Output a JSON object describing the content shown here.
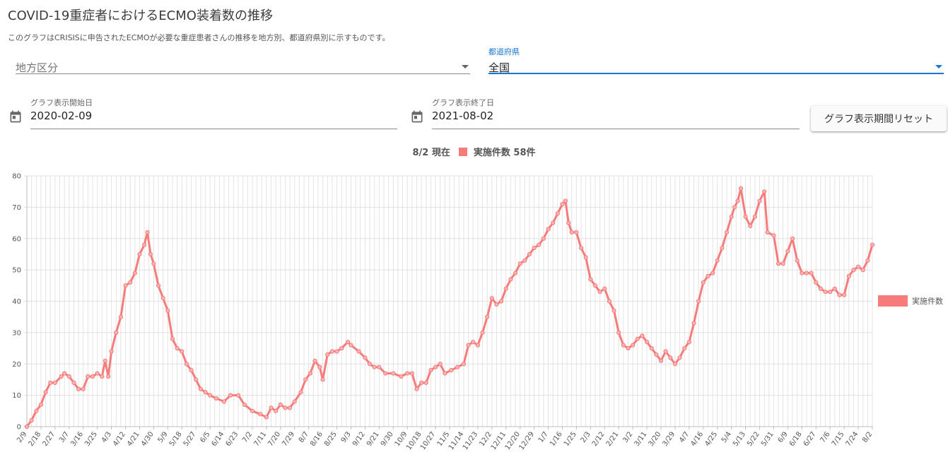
{
  "page": {
    "title": "COVID-19重症者におけるECMO装着数の推移",
    "description": "このグラフはCRISISに申告されたECMOが必要な重症患者さんの推移を地方別、都道府県別に示すものです。"
  },
  "filters": {
    "region": {
      "placeholder": "地方区分",
      "value": ""
    },
    "prefecture": {
      "label": "都道府県",
      "value": "全国"
    }
  },
  "date_range": {
    "start": {
      "label": "グラフ表示開始日",
      "value": "2020-02-09"
    },
    "end": {
      "label": "グラフ表示終了日",
      "value": "2021-08-02"
    },
    "reset_label": "グラフ表示期間リセット"
  },
  "summary": {
    "date_text": "8/2 現在",
    "metric_text": "実施件数 58件"
  },
  "colors": {
    "series": "#f77b7b",
    "accent": "#1976d2"
  },
  "icons": {
    "date_start": "calendar-icon",
    "date_end": "calendar-icon",
    "dropdown": "dropdown-arrow-icon"
  },
  "chart_data": {
    "type": "line",
    "x_start": "2020-02-09",
    "x_end": "2021-08-02",
    "x_tick_interval_days": 9,
    "x_tick_labels": [
      "2/9",
      "2/18",
      "2/27",
      "3/7",
      "3/16",
      "3/25",
      "4/3",
      "4/12",
      "4/21",
      "4/30",
      "5/9",
      "5/18",
      "5/27",
      "6/5",
      "6/14",
      "6/23",
      "7/2",
      "7/11",
      "7/20",
      "7/29",
      "8/7",
      "8/16",
      "8/25",
      "9/3",
      "9/12",
      "9/21",
      "9/30",
      "10/9",
      "10/18",
      "10/27",
      "11/5",
      "11/14",
      "11/23",
      "12/2",
      "12/11",
      "12/20",
      "12/29",
      "1/7",
      "1/16",
      "1/25",
      "2/3",
      "2/12",
      "2/21",
      "3/2",
      "3/11",
      "3/20",
      "3/29",
      "4/7",
      "4/16",
      "4/25",
      "5/4",
      "5/13",
      "5/22",
      "5/31",
      "6/9",
      "6/18",
      "6/27",
      "7/6",
      "7/15",
      "7/24",
      "8/2"
    ],
    "y_range": [
      0,
      80
    ],
    "y_ticks": [
      0,
      10,
      20,
      30,
      40,
      50,
      60,
      70,
      80
    ],
    "grid": true,
    "legend_position": "right",
    "series": [
      {
        "name": "実施件数",
        "color": "#f77b7b",
        "points": [
          [
            "2020-02-09",
            0
          ],
          [
            "2020-02-12",
            2
          ],
          [
            "2020-02-15",
            5
          ],
          [
            "2020-02-18",
            7
          ],
          [
            "2020-02-21",
            11
          ],
          [
            "2020-02-24",
            14
          ],
          [
            "2020-02-27",
            14
          ],
          [
            "2020-03-02",
            16
          ],
          [
            "2020-03-04",
            17
          ],
          [
            "2020-03-07",
            16
          ],
          [
            "2020-03-10",
            14
          ],
          [
            "2020-03-13",
            12
          ],
          [
            "2020-03-16",
            12
          ],
          [
            "2020-03-19",
            16
          ],
          [
            "2020-03-22",
            16
          ],
          [
            "2020-03-25",
            17
          ],
          [
            "2020-03-28",
            16
          ],
          [
            "2020-03-30",
            21
          ],
          [
            "2020-04-01",
            16
          ],
          [
            "2020-04-03",
            24
          ],
          [
            "2020-04-06",
            30
          ],
          [
            "2020-04-09",
            35
          ],
          [
            "2020-04-12",
            45
          ],
          [
            "2020-04-15",
            46
          ],
          [
            "2020-04-18",
            49
          ],
          [
            "2020-04-21",
            55
          ],
          [
            "2020-04-24",
            58
          ],
          [
            "2020-04-26",
            62
          ],
          [
            "2020-04-28",
            55
          ],
          [
            "2020-04-30",
            52
          ],
          [
            "2020-05-03",
            45
          ],
          [
            "2020-05-06",
            41
          ],
          [
            "2020-05-09",
            37
          ],
          [
            "2020-05-12",
            28
          ],
          [
            "2020-05-15",
            25
          ],
          [
            "2020-05-18",
            24
          ],
          [
            "2020-05-21",
            20
          ],
          [
            "2020-05-24",
            18
          ],
          [
            "2020-05-27",
            15
          ],
          [
            "2020-05-30",
            12
          ],
          [
            "2020-06-02",
            11
          ],
          [
            "2020-06-05",
            10
          ],
          [
            "2020-06-09",
            9
          ],
          [
            "2020-06-14",
            8
          ],
          [
            "2020-06-18",
            10
          ],
          [
            "2020-06-23",
            10
          ],
          [
            "2020-06-27",
            7
          ],
          [
            "2020-07-02",
            5
          ],
          [
            "2020-07-07",
            4
          ],
          [
            "2020-07-11",
            3
          ],
          [
            "2020-07-14",
            6
          ],
          [
            "2020-07-17",
            5
          ],
          [
            "2020-07-20",
            7
          ],
          [
            "2020-07-23",
            6
          ],
          [
            "2020-07-26",
            6
          ],
          [
            "2020-07-29",
            8
          ],
          [
            "2020-08-02",
            11
          ],
          [
            "2020-08-05",
            15
          ],
          [
            "2020-08-08",
            17
          ],
          [
            "2020-08-11",
            21
          ],
          [
            "2020-08-14",
            19
          ],
          [
            "2020-08-16",
            15
          ],
          [
            "2020-08-19",
            23
          ],
          [
            "2020-08-22",
            24
          ],
          [
            "2020-08-25",
            24
          ],
          [
            "2020-08-28",
            25
          ],
          [
            "2020-09-01",
            27
          ],
          [
            "2020-09-03",
            26
          ],
          [
            "2020-09-08",
            24
          ],
          [
            "2020-09-12",
            22
          ],
          [
            "2020-09-15",
            20
          ],
          [
            "2020-09-18",
            19
          ],
          [
            "2020-09-21",
            19
          ],
          [
            "2020-09-25",
            17
          ],
          [
            "2020-09-30",
            17
          ],
          [
            "2020-10-05",
            16
          ],
          [
            "2020-10-09",
            17
          ],
          [
            "2020-10-12",
            17
          ],
          [
            "2020-10-15",
            12
          ],
          [
            "2020-10-18",
            14
          ],
          [
            "2020-10-21",
            14
          ],
          [
            "2020-10-24",
            18
          ],
          [
            "2020-10-27",
            19
          ],
          [
            "2020-10-30",
            20
          ],
          [
            "2020-11-02",
            17
          ],
          [
            "2020-11-06",
            18
          ],
          [
            "2020-11-10",
            19
          ],
          [
            "2020-11-14",
            20
          ],
          [
            "2020-11-17",
            26
          ],
          [
            "2020-11-20",
            27
          ],
          [
            "2020-11-23",
            26
          ],
          [
            "2020-11-26",
            30
          ],
          [
            "2020-11-29",
            35
          ],
          [
            "2020-12-02",
            41
          ],
          [
            "2020-12-05",
            39
          ],
          [
            "2020-12-08",
            40
          ],
          [
            "2020-12-11",
            44
          ],
          [
            "2020-12-14",
            47
          ],
          [
            "2020-12-17",
            49
          ],
          [
            "2020-12-20",
            52
          ],
          [
            "2020-12-23",
            53
          ],
          [
            "2020-12-26",
            55
          ],
          [
            "2020-12-29",
            57
          ],
          [
            "2021-01-01",
            58
          ],
          [
            "2021-01-04",
            60
          ],
          [
            "2021-01-07",
            63
          ],
          [
            "2021-01-10",
            65
          ],
          [
            "2021-01-13",
            68
          ],
          [
            "2021-01-16",
            71
          ],
          [
            "2021-01-18",
            72
          ],
          [
            "2021-01-20",
            65
          ],
          [
            "2021-01-22",
            62
          ],
          [
            "2021-01-25",
            62
          ],
          [
            "2021-01-28",
            57
          ],
          [
            "2021-01-31",
            54
          ],
          [
            "2021-02-03",
            47
          ],
          [
            "2021-02-06",
            45
          ],
          [
            "2021-02-09",
            43
          ],
          [
            "2021-02-12",
            44
          ],
          [
            "2021-02-15",
            40
          ],
          [
            "2021-02-18",
            37
          ],
          [
            "2021-02-21",
            30
          ],
          [
            "2021-02-24",
            26
          ],
          [
            "2021-02-27",
            25
          ],
          [
            "2021-03-02",
            26
          ],
          [
            "2021-03-05",
            28
          ],
          [
            "2021-03-08",
            29
          ],
          [
            "2021-03-11",
            27
          ],
          [
            "2021-03-14",
            25
          ],
          [
            "2021-03-17",
            23
          ],
          [
            "2021-03-20",
            21
          ],
          [
            "2021-03-23",
            24
          ],
          [
            "2021-03-26",
            22
          ],
          [
            "2021-03-29",
            20
          ],
          [
            "2021-04-01",
            22
          ],
          [
            "2021-04-04",
            25
          ],
          [
            "2021-04-07",
            27
          ],
          [
            "2021-04-10",
            33
          ],
          [
            "2021-04-13",
            40
          ],
          [
            "2021-04-16",
            46
          ],
          [
            "2021-04-19",
            48
          ],
          [
            "2021-04-22",
            49
          ],
          [
            "2021-04-25",
            53
          ],
          [
            "2021-04-28",
            57
          ],
          [
            "2021-05-01",
            62
          ],
          [
            "2021-05-04",
            67
          ],
          [
            "2021-05-06",
            70
          ],
          [
            "2021-05-08",
            72
          ],
          [
            "2021-05-10",
            76
          ],
          [
            "2021-05-13",
            67
          ],
          [
            "2021-05-16",
            64
          ],
          [
            "2021-05-19",
            67
          ],
          [
            "2021-05-22",
            72
          ],
          [
            "2021-05-25",
            75
          ],
          [
            "2021-05-27",
            62
          ],
          [
            "2021-05-31",
            61
          ],
          [
            "2021-06-03",
            52
          ],
          [
            "2021-06-06",
            52
          ],
          [
            "2021-06-09",
            56
          ],
          [
            "2021-06-12",
            60
          ],
          [
            "2021-06-15",
            53
          ],
          [
            "2021-06-18",
            49
          ],
          [
            "2021-06-21",
            49
          ],
          [
            "2021-06-24",
            49
          ],
          [
            "2021-06-27",
            46
          ],
          [
            "2021-06-30",
            44
          ],
          [
            "2021-07-03",
            43
          ],
          [
            "2021-07-06",
            43
          ],
          [
            "2021-07-09",
            44
          ],
          [
            "2021-07-12",
            42
          ],
          [
            "2021-07-15",
            42
          ],
          [
            "2021-07-18",
            48
          ],
          [
            "2021-07-21",
            50
          ],
          [
            "2021-07-24",
            51
          ],
          [
            "2021-07-27",
            50
          ],
          [
            "2021-07-30",
            53
          ],
          [
            "2021-08-02",
            58
          ]
        ]
      }
    ]
  }
}
